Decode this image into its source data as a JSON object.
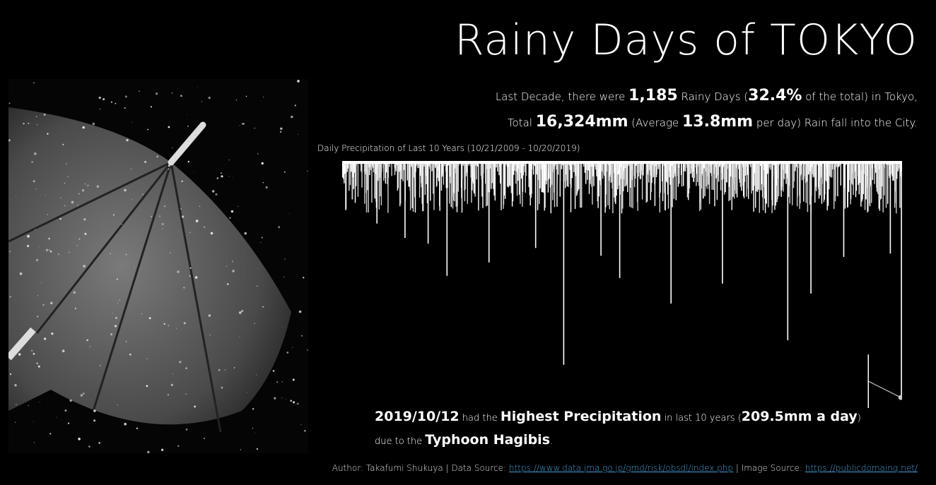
{
  "title": "Rainy Days of TOKYO",
  "summary": {
    "line1": {
      "pre": "Last Decade, there were ",
      "rainy_days": "1,185",
      "mid": " Rainy Days (",
      "pct": "32.4%",
      "post": " of the total) in Tokyo,"
    },
    "line2": {
      "pre": "Total ",
      "total": "16,324mm",
      "mid": " (Average ",
      "avg": "13.8mm",
      "post": " per day) Rain fall into the City."
    }
  },
  "note": {
    "date": "2019/10/12",
    "t1": " had the ",
    "highlight": "Highest Precipitation",
    "t2": " in last 10 years (",
    "amount": "209.5mm a day",
    "t3": ")",
    "t4": "due to the ",
    "typhoon": "Typhoon Hagibis",
    "t5": "."
  },
  "footer": {
    "author": "Author: Takafumi Shukuya | Data Source: ",
    "data_url": "https://www.data.jma.go.jp/gmd/risk/obsdl/index.php",
    "sep": " | Image Source: ",
    "image_url": "https://publicdomainq.net/"
  },
  "chart_data": {
    "type": "bar",
    "orientation": "hanging-downward",
    "title": "Daily Precipitation of Last 10 Years (10/21/2009 - 10/20/2019)",
    "x_range": [
      "2009-10-21",
      "2019-10-20"
    ],
    "unit": "mm",
    "max_value": 209.5,
    "max_date": "2019-10-12",
    "notable_peaks": [
      {
        "date": "2010-06",
        "value": 55
      },
      {
        "date": "2010-12",
        "value": 68
      },
      {
        "date": "2011-05",
        "value": 73
      },
      {
        "date": "2011-09",
        "value": 102
      },
      {
        "date": "2012-06",
        "value": 90
      },
      {
        "date": "2013-04",
        "value": 77
      },
      {
        "date": "2013-10",
        "value": 182
      },
      {
        "date": "2014-06",
        "value": 84
      },
      {
        "date": "2014-10",
        "value": 104
      },
      {
        "date": "2015-09",
        "value": 127
      },
      {
        "date": "2016-08",
        "value": 109
      },
      {
        "date": "2017-10",
        "value": 160
      },
      {
        "date": "2018-03",
        "value": 118
      },
      {
        "date": "2018-10",
        "value": 85
      },
      {
        "date": "2019-08",
        "value": 82
      },
      {
        "date": "2019-10-12",
        "value": 209.5
      }
    ],
    "colors": {
      "bars": "#ffffff",
      "background": "#000000"
    }
  }
}
